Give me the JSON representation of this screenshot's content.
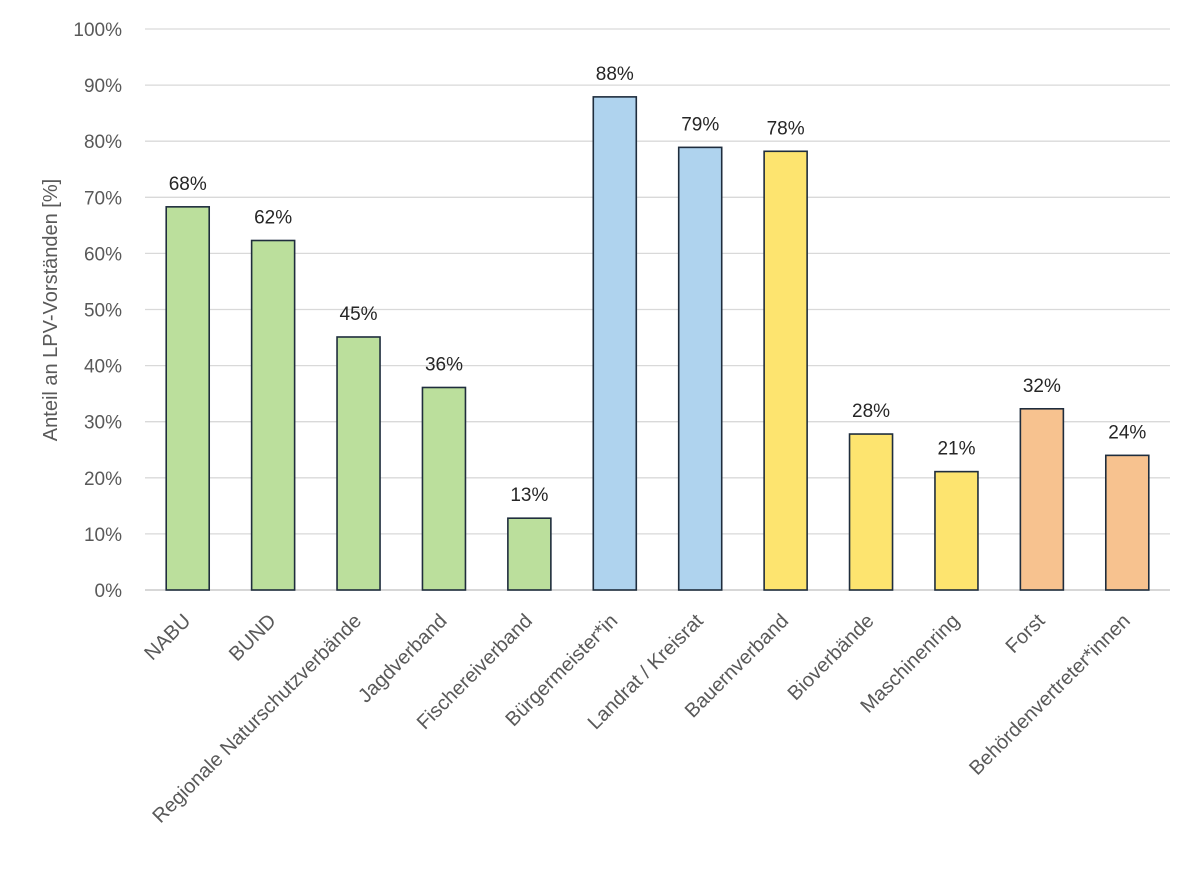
{
  "chart_data": {
    "type": "bar",
    "title": "",
    "xlabel": "",
    "ylabel": "Anteil an LPV-Vorständen [%]",
    "ylim": [
      0,
      100
    ],
    "ytick_values": [
      0,
      10,
      20,
      30,
      40,
      50,
      60,
      70,
      80,
      90,
      100
    ],
    "ytick_labels": [
      "0%",
      "10%",
      "20%",
      "30%",
      "40%",
      "50%",
      "60%",
      "70%",
      "80%",
      "90%",
      "100%"
    ],
    "grid": true,
    "legend": "none",
    "categories": [
      "NABU",
      "BUND",
      "Regionale Naturschutzverbände",
      "Jagdverband",
      "Fischereiverband",
      "Bürgermeister*in",
      "Landrat / Kreisrat",
      "Bauernverband",
      "Bioverbände",
      "Maschinenring",
      "Forst",
      "Behördenvertreter*innen"
    ],
    "values": [
      68.3,
      62.3,
      45.1,
      36.1,
      12.8,
      87.9,
      78.9,
      78.2,
      27.8,
      21.1,
      32.3,
      24.0
    ],
    "data_labels": [
      "68%",
      "62%",
      "45%",
      "36%",
      "13%",
      "88%",
      "79%",
      "78%",
      "28%",
      "21%",
      "32%",
      "24%"
    ],
    "bar_colors": [
      "#bbdf9c",
      "#bbdf9c",
      "#bbdf9c",
      "#bbdf9c",
      "#bbdf9c",
      "#afd3ee",
      "#afd3ee",
      "#fde46f",
      "#fde46f",
      "#fde46f",
      "#f7c28f",
      "#f7c28f"
    ],
    "bar_outline_color": "#1f2d3d"
  }
}
